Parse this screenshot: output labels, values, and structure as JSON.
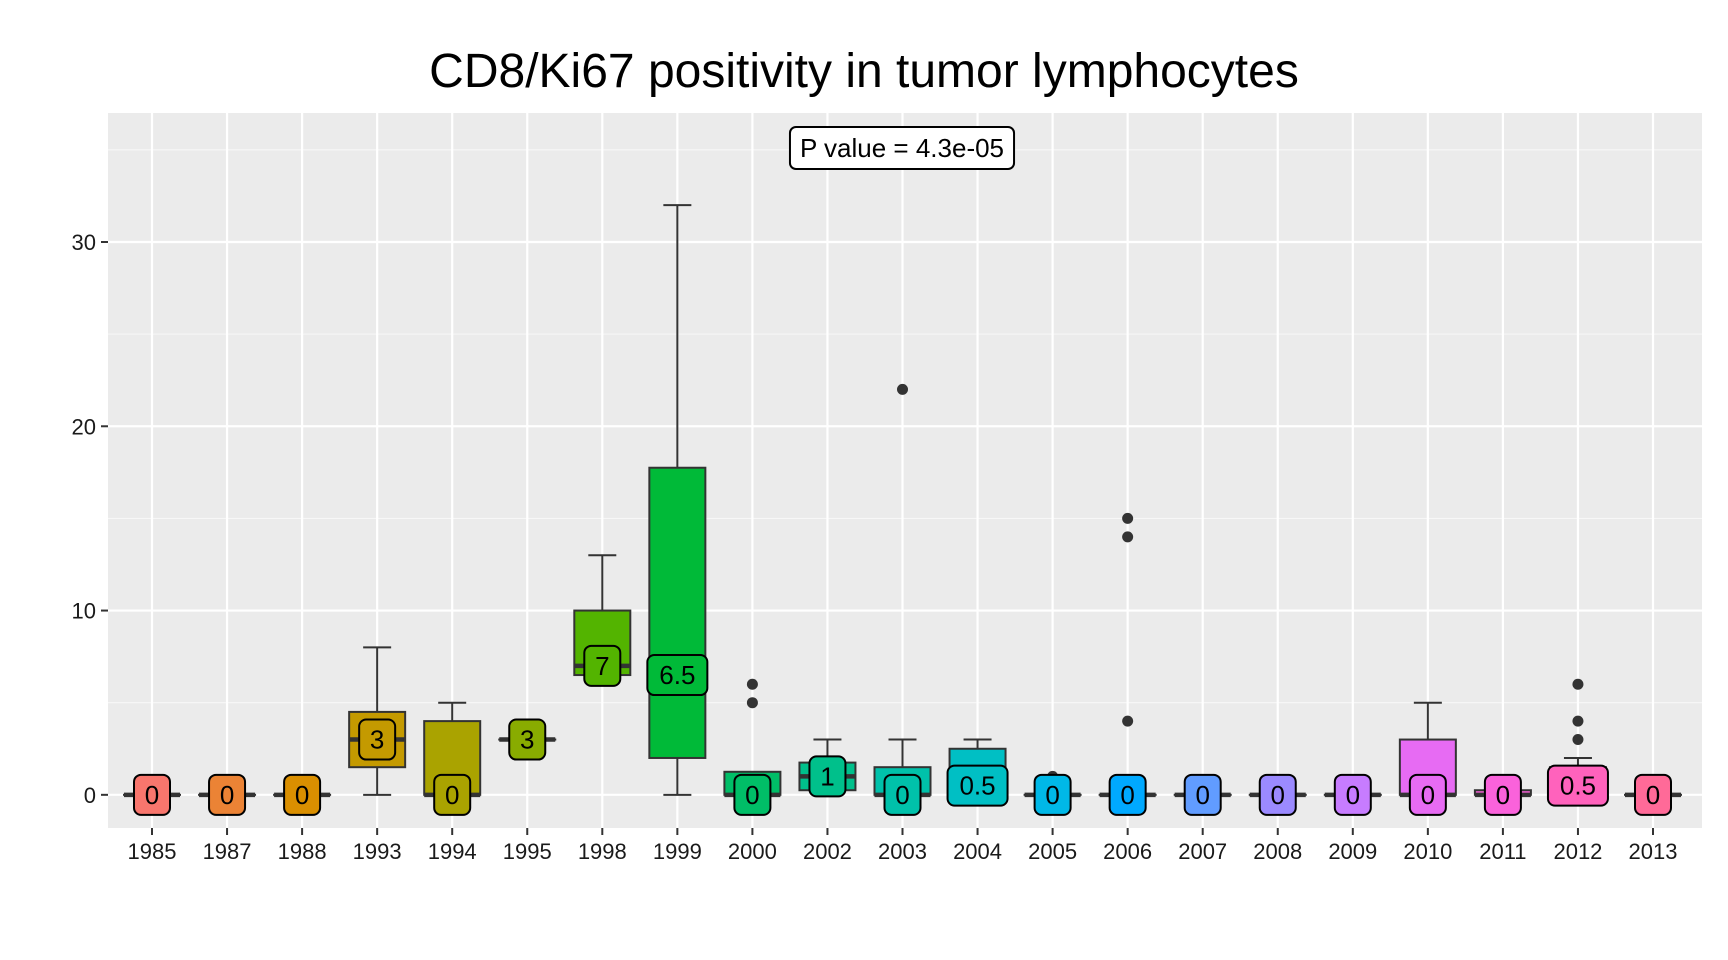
{
  "chart_data": {
    "type": "boxplot",
    "title": "CD8/Ki67 positivity in tumor lymphocytes",
    "xlabel": "",
    "ylabel": "",
    "ylim": [
      -1.8,
      37
    ],
    "yticks": [
      0,
      10,
      20,
      30
    ],
    "grid": true,
    "legend": "none",
    "annotation": "P value = 4.3e-05",
    "categories": [
      "1985",
      "1987",
      "1988",
      "1993",
      "1994",
      "1995",
      "1998",
      "1999",
      "2000",
      "2002",
      "2003",
      "2004",
      "2005",
      "2006",
      "2007",
      "2008",
      "2009",
      "2010",
      "2011",
      "2012",
      "2013"
    ],
    "boxes": [
      {
        "x": "1985",
        "lower_whisker": 0,
        "q1": 0,
        "median": 0,
        "q3": 0,
        "upper_whisker": 0,
        "outliers": [],
        "label": "0",
        "color": "#F8766D"
      },
      {
        "x": "1987",
        "lower_whisker": 0,
        "q1": 0,
        "median": 0,
        "q3": 0,
        "upper_whisker": 0,
        "outliers": [],
        "label": "0",
        "color": "#EB8335"
      },
      {
        "x": "1988",
        "lower_whisker": 0,
        "q1": 0,
        "median": 0,
        "q3": 0,
        "upper_whisker": 0,
        "outliers": [],
        "label": "0",
        "color": "#DA8F00"
      },
      {
        "x": "1993",
        "lower_whisker": 0,
        "q1": 1.5,
        "median": 3,
        "q3": 4.5,
        "upper_whisker": 8,
        "outliers": [],
        "label": "3",
        "color": "#C49A00"
      },
      {
        "x": "1994",
        "lower_whisker": 0,
        "q1": 0,
        "median": 0,
        "q3": 4,
        "upper_whisker": 5,
        "outliers": [],
        "label": "0",
        "color": "#AAA300"
      },
      {
        "x": "1995",
        "lower_whisker": 3,
        "q1": 3,
        "median": 3,
        "q3": 3,
        "upper_whisker": 3,
        "outliers": [],
        "label": "3",
        "color": "#89AC00"
      },
      {
        "x": "1998",
        "lower_whisker": 6.5,
        "q1": 6.5,
        "median": 7,
        "q3": 10,
        "upper_whisker": 13,
        "outliers": [],
        "label": "7",
        "color": "#53B400"
      },
      {
        "x": "1999",
        "lower_whisker": 0,
        "q1": 2,
        "median": 6.5,
        "q3": 17.75,
        "upper_whisker": 32,
        "outliers": [],
        "label": "6.5",
        "color": "#00BA38"
      },
      {
        "x": "2000",
        "lower_whisker": 0,
        "q1": 0,
        "median": 0,
        "q3": 1.25,
        "upper_whisker": 1.25,
        "outliers": [
          5,
          6
        ],
        "label": "0",
        "color": "#00BE67"
      },
      {
        "x": "2002",
        "lower_whisker": 0.25,
        "q1": 0.25,
        "median": 1,
        "q3": 1.75,
        "upper_whisker": 3,
        "outliers": [],
        "label": "1",
        "color": "#00C08B"
      },
      {
        "x": "2003",
        "lower_whisker": 0,
        "q1": 0,
        "median": 0,
        "q3": 1.5,
        "upper_whisker": 3,
        "outliers": [
          22
        ],
        "label": "0",
        "color": "#00C1AA"
      },
      {
        "x": "2004",
        "lower_whisker": 0,
        "q1": 0,
        "median": 0.5,
        "q3": 2.5,
        "upper_whisker": 3,
        "outliers": [],
        "label": "0.5",
        "color": "#00BFC4"
      },
      {
        "x": "2005",
        "lower_whisker": 0,
        "q1": 0,
        "median": 0,
        "q3": 0,
        "upper_whisker": 0,
        "outliers": [
          1
        ],
        "label": "0",
        "color": "#00B8E7"
      },
      {
        "x": "2006",
        "lower_whisker": 0,
        "q1": 0,
        "median": 0,
        "q3": 0,
        "upper_whisker": 0,
        "outliers": [
          4,
          14,
          15
        ],
        "label": "0",
        "color": "#00A9FF"
      },
      {
        "x": "2007",
        "lower_whisker": 0,
        "q1": 0,
        "median": 0,
        "q3": 0,
        "upper_whisker": 0,
        "outliers": [],
        "label": "0",
        "color": "#619CFF"
      },
      {
        "x": "2008",
        "lower_whisker": 0,
        "q1": 0,
        "median": 0,
        "q3": 0,
        "upper_whisker": 0,
        "outliers": [],
        "label": "0",
        "color": "#9B8AFF"
      },
      {
        "x": "2009",
        "lower_whisker": 0,
        "q1": 0,
        "median": 0,
        "q3": 0,
        "upper_whisker": 0,
        "outliers": [],
        "label": "0",
        "color": "#C77CFF"
      },
      {
        "x": "2010",
        "lower_whisker": 0,
        "q1": 0,
        "median": 0,
        "q3": 3,
        "upper_whisker": 5,
        "outliers": [],
        "label": "0",
        "color": "#E76BF3"
      },
      {
        "x": "2011",
        "lower_whisker": 0,
        "q1": 0,
        "median": 0,
        "q3": 0.25,
        "upper_whisker": 1,
        "outliers": [],
        "label": "0",
        "color": "#FA62DB"
      },
      {
        "x": "2012",
        "lower_whisker": 0,
        "q1": 0,
        "median": 0.5,
        "q3": 1.5,
        "upper_whisker": 2,
        "outliers": [
          3,
          4,
          6
        ],
        "label": "0.5",
        "color": "#FF62BC"
      },
      {
        "x": "2013",
        "lower_whisker": 0,
        "q1": 0,
        "median": 0,
        "q3": 0,
        "upper_whisker": 0,
        "outliers": [],
        "label": "0",
        "color": "#FF6A98"
      }
    ],
    "colors": {
      "panel_background": "#EBEBEB",
      "grid_major": "#FFFFFF",
      "box_outline": "#333333",
      "outlier": "#333333"
    }
  }
}
